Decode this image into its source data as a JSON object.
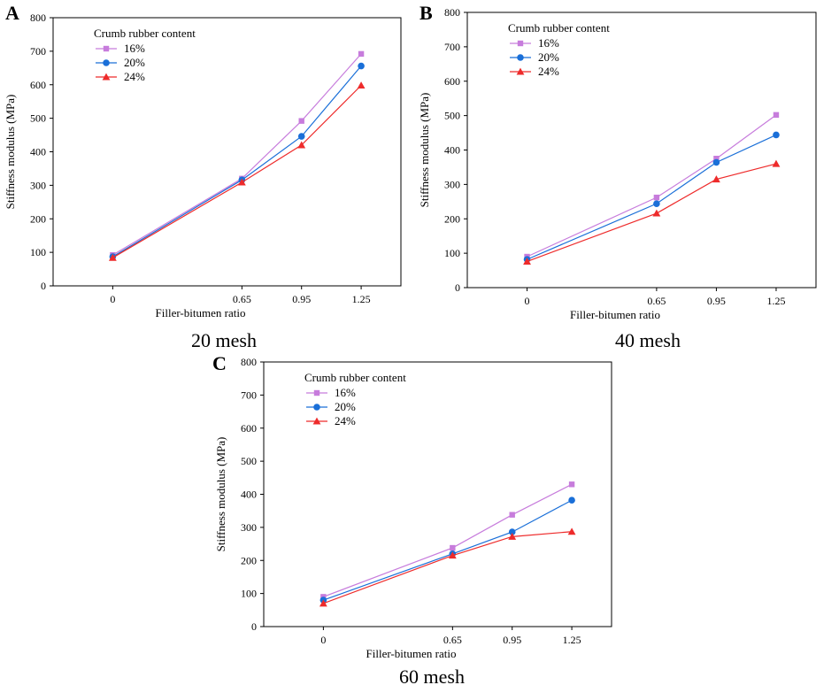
{
  "figure": {
    "series_style": {
      "16%": {
        "color": "#c77cdc",
        "marker": "square"
      },
      "20%": {
        "color": "#1a6fd8",
        "marker": "circle"
      },
      "24%": {
        "color": "#ee2b2b",
        "marker": "triangle"
      }
    }
  },
  "chart_data": [
    {
      "panel": "A",
      "type": "line",
      "caption": "20 mesh",
      "legend_title": "Crumb rubber content",
      "xlabel": "Filler-bitumen ratio",
      "ylabel": "Stiffness modulus (MPa)",
      "x": [
        0,
        0.65,
        0.95,
        1.25
      ],
      "x_tick_labels": [
        "0",
        "0.65",
        "0.95",
        "1.25"
      ],
      "xlim": [
        -0.3,
        1.45
      ],
      "ylim": [
        0,
        800
      ],
      "y_ticks": [
        0,
        100,
        200,
        300,
        400,
        500,
        600,
        700,
        800
      ],
      "series": [
        {
          "name": "16%",
          "values": [
            92,
            320,
            492,
            692
          ]
        },
        {
          "name": "20%",
          "values": [
            87,
            316,
            446,
            656
          ]
        },
        {
          "name": "24%",
          "values": [
            84,
            309,
            420,
            598
          ]
        }
      ]
    },
    {
      "panel": "B",
      "type": "line",
      "caption": "40 mesh",
      "legend_title": "Crumb rubber content",
      "xlabel": "Filler-bitumen ratio",
      "ylabel": "Stiffness modulus (MPa)",
      "x": [
        0,
        0.65,
        0.95,
        1.25
      ],
      "x_tick_labels": [
        "0",
        "0.65",
        "0.95",
        "1.25"
      ],
      "xlim": [
        -0.3,
        1.45
      ],
      "ylim": [
        0,
        800
      ],
      "y_ticks": [
        0,
        100,
        200,
        300,
        400,
        500,
        600,
        700,
        800
      ],
      "series": [
        {
          "name": "16%",
          "values": [
            90,
            262,
            375,
            502
          ]
        },
        {
          "name": "20%",
          "values": [
            82,
            244,
            364,
            444
          ]
        },
        {
          "name": "24%",
          "values": [
            76,
            216,
            315,
            360
          ]
        }
      ]
    },
    {
      "panel": "C",
      "type": "line",
      "caption": "60 mesh",
      "legend_title": "Crumb rubber content",
      "xlabel": "Filler-bitumen ratio",
      "ylabel": "Stiffness modulus (MPa)",
      "x": [
        0,
        0.65,
        0.95,
        1.25
      ],
      "x_tick_labels": [
        "0",
        "0.65",
        "0.95",
        "1.25"
      ],
      "xlim": [
        -0.3,
        1.45
      ],
      "ylim": [
        0,
        800
      ],
      "y_ticks": [
        0,
        100,
        200,
        300,
        400,
        500,
        600,
        700,
        800
      ],
      "series": [
        {
          "name": "16%",
          "values": [
            90,
            238,
            338,
            430
          ]
        },
        {
          "name": "20%",
          "values": [
            80,
            220,
            286,
            382
          ]
        },
        {
          "name": "24%",
          "values": [
            70,
            215,
            272,
            287
          ]
        }
      ]
    }
  ]
}
